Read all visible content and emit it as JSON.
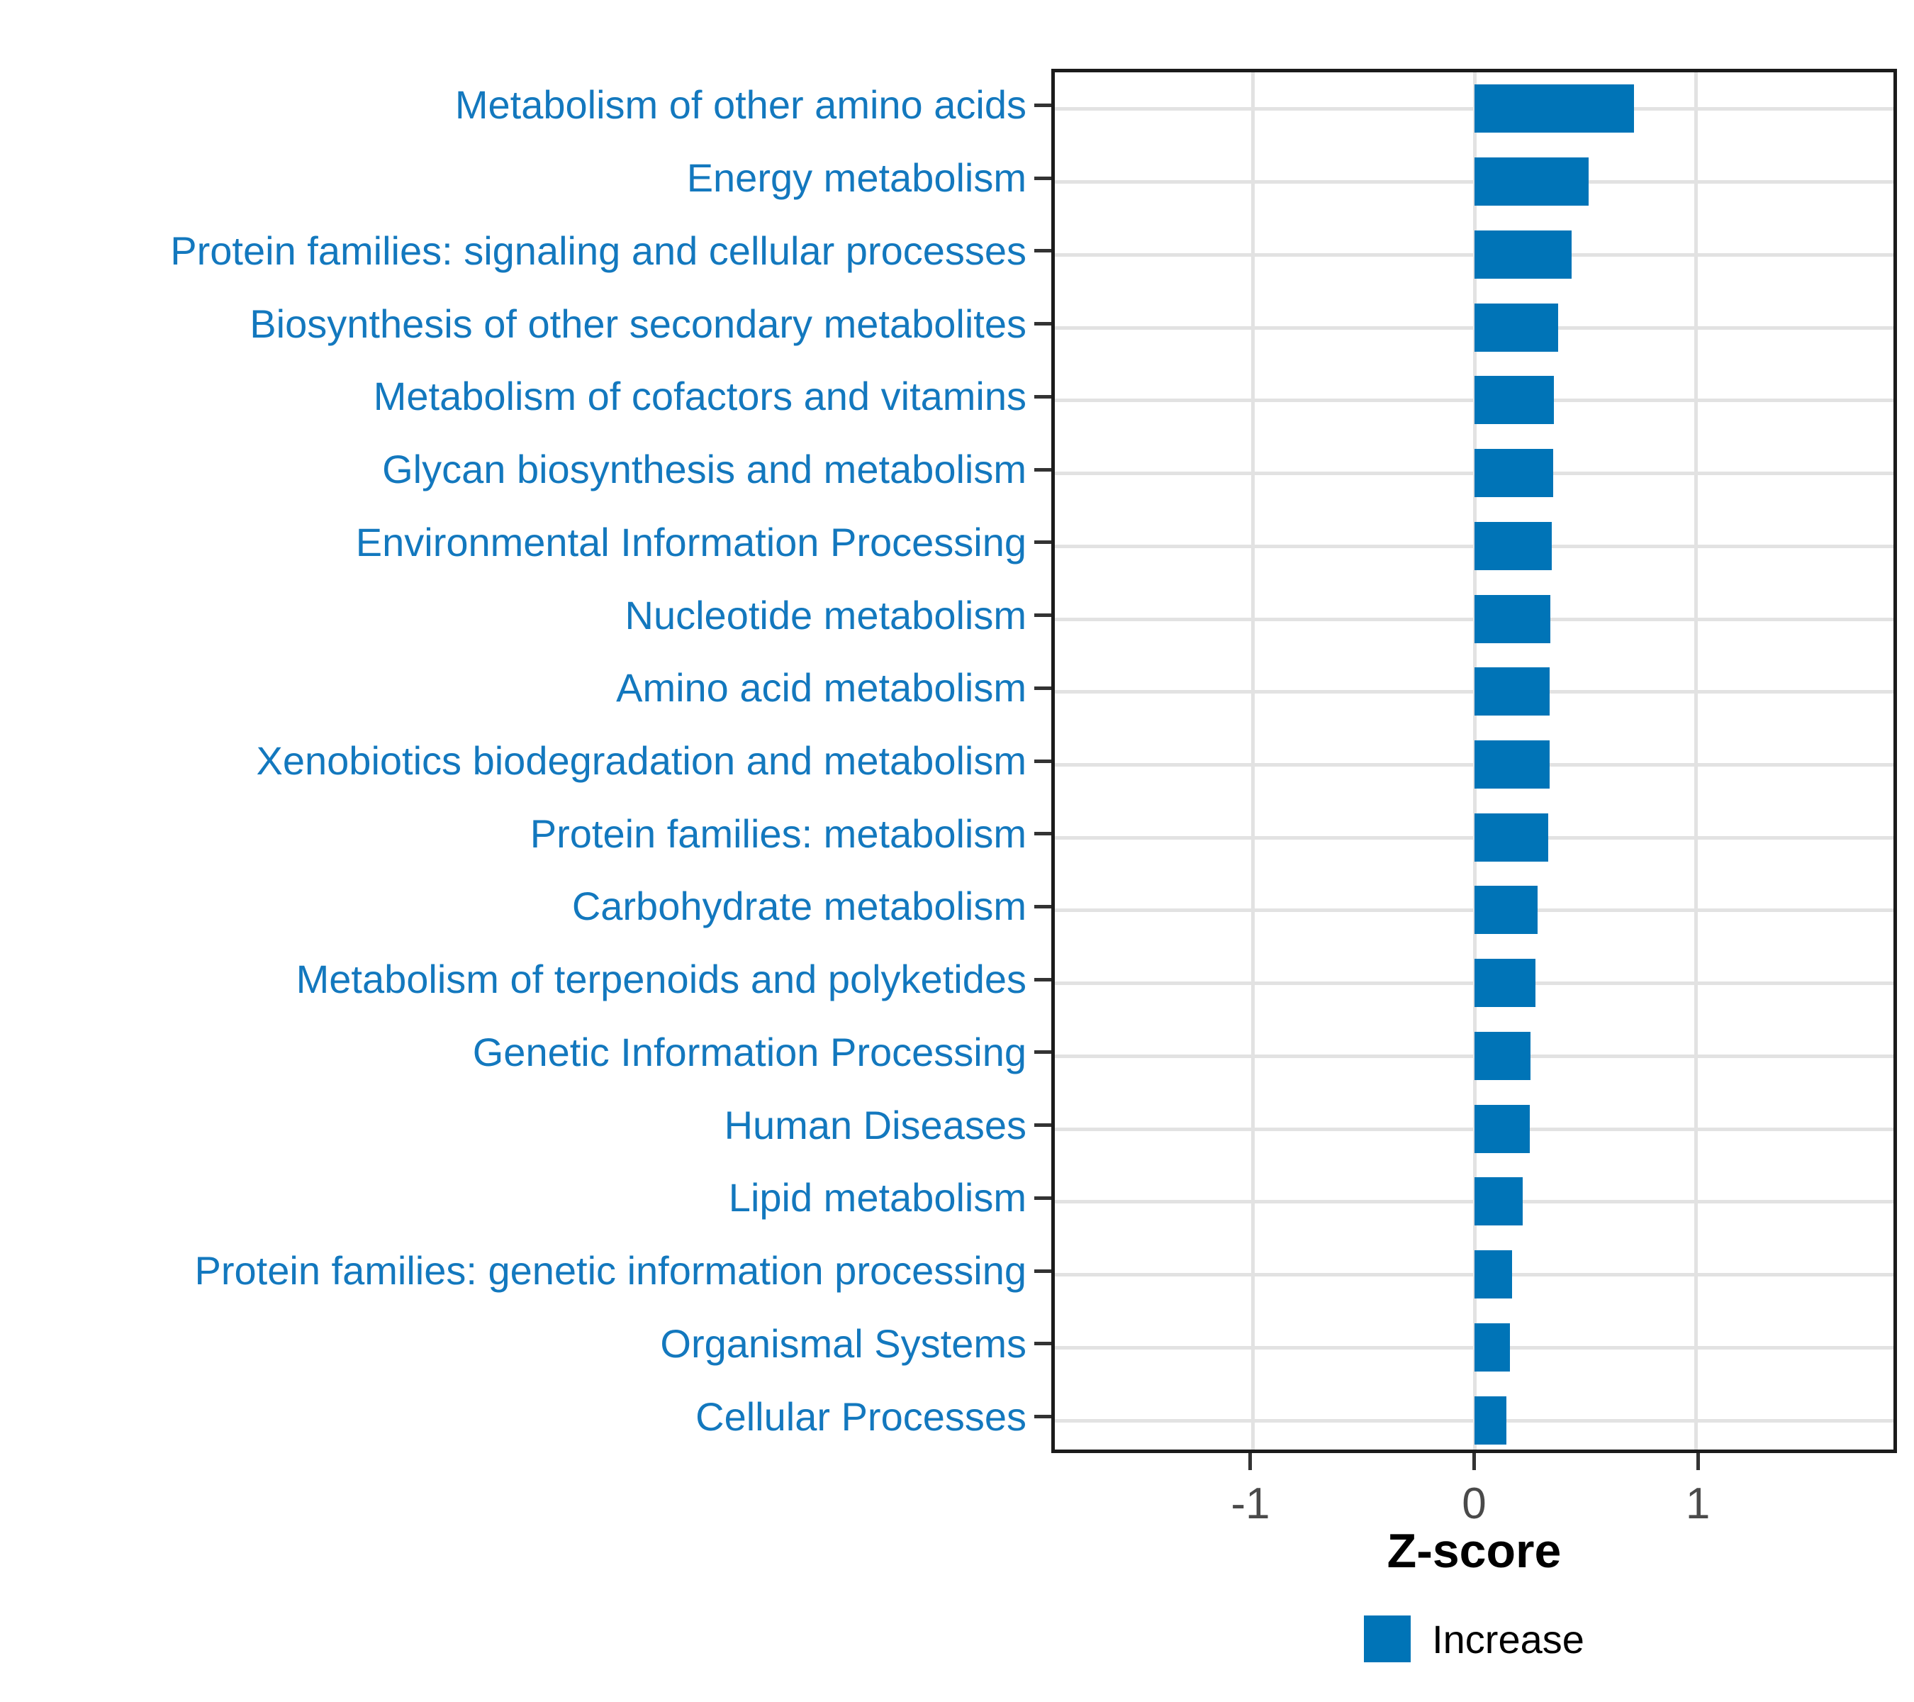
{
  "chart_data": {
    "type": "bar",
    "orientation": "horizontal",
    "title": "",
    "xlabel": "Z-score",
    "ylabel": "",
    "xlim": [
      -1.89,
      1.89
    ],
    "xticks": [
      -1,
      0,
      1
    ],
    "xtick_labels": [
      "-1",
      "0",
      "1"
    ],
    "grid": "major",
    "legend_position": "bottom",
    "categories": [
      "Metabolism of other amino acids",
      "Energy metabolism",
      "Protein families: signaling and cellular processes",
      "Biosynthesis of other secondary metabolites",
      "Metabolism of cofactors and vitamins",
      "Glycan biosynthesis and metabolism",
      "Environmental Information Processing",
      "Nucleotide metabolism",
      "Amino acid metabolism",
      "Xenobiotics biodegradation and metabolism",
      "Protein families: metabolism",
      "Carbohydrate metabolism",
      "Metabolism of terpenoids and polyketides",
      "Genetic Information Processing",
      "Human Diseases",
      "Lipid metabolism",
      "Protein families: genetic information processing",
      "Organismal Systems",
      "Cellular Processes"
    ],
    "series": [
      {
        "name": "Increase",
        "color": "#0074b7",
        "values": [
          0.72,
          0.515,
          0.44,
          0.38,
          0.36,
          0.355,
          0.35,
          0.345,
          0.34,
          0.34,
          0.335,
          0.285,
          0.275,
          0.255,
          0.25,
          0.22,
          0.17,
          0.16,
          0.145
        ]
      }
    ]
  },
  "x_axis": {
    "title": "Z-score"
  },
  "legend": {
    "label": "Increase"
  },
  "colors": {
    "bar": "#0074b7",
    "category_label": "#1378be",
    "tick_label": "#4a4a4a",
    "gridline": "#e2e2e2",
    "panel_border": "#1b1b1b",
    "background": "#ffffff"
  }
}
